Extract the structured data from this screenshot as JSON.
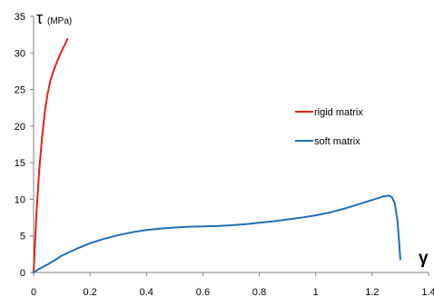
{
  "chart_data": {
    "type": "line",
    "ylabel": "τ",
    "ylabel_unit": "(MPa)",
    "xlabel": "γ",
    "xlim": [
      0,
      1.4
    ],
    "ylim": [
      0,
      35
    ],
    "xticks": [
      "0",
      "0.2",
      "0.4",
      "0.6",
      "0.8",
      "1",
      "1.2",
      "1.4"
    ],
    "yticks": [
      "0",
      "5",
      "10",
      "15",
      "20",
      "25",
      "30",
      "35"
    ],
    "grid": false,
    "legend_position": "right-middle",
    "series": [
      {
        "name": "rigid matrix",
        "color": "#e3211d",
        "points": [
          [
            0,
            0
          ],
          [
            0.002,
            1.5
          ],
          [
            0.005,
            4
          ],
          [
            0.01,
            8
          ],
          [
            0.015,
            11
          ],
          [
            0.02,
            14
          ],
          [
            0.03,
            18.5
          ],
          [
            0.04,
            22
          ],
          [
            0.05,
            24.5
          ],
          [
            0.06,
            26.3
          ],
          [
            0.07,
            27.5
          ],
          [
            0.08,
            28.5
          ],
          [
            0.09,
            29.5
          ],
          [
            0.1,
            30.3
          ],
          [
            0.11,
            31.1
          ],
          [
            0.12,
            31.9
          ]
        ]
      },
      {
        "name": "soft matrix",
        "color": "#1f6fb4",
        "points": [
          [
            0,
            0
          ],
          [
            0.02,
            0.5
          ],
          [
            0.05,
            1.1
          ],
          [
            0.08,
            1.8
          ],
          [
            0.1,
            2.3
          ],
          [
            0.15,
            3.2
          ],
          [
            0.2,
            4.0
          ],
          [
            0.25,
            4.6
          ],
          [
            0.3,
            5.1
          ],
          [
            0.35,
            5.5
          ],
          [
            0.4,
            5.8
          ],
          [
            0.45,
            6.0
          ],
          [
            0.5,
            6.15
          ],
          [
            0.55,
            6.25
          ],
          [
            0.6,
            6.3
          ],
          [
            0.65,
            6.35
          ],
          [
            0.7,
            6.45
          ],
          [
            0.75,
            6.6
          ],
          [
            0.8,
            6.8
          ],
          [
            0.85,
            7.0
          ],
          [
            0.9,
            7.25
          ],
          [
            0.95,
            7.5
          ],
          [
            1.0,
            7.8
          ],
          [
            1.05,
            8.2
          ],
          [
            1.1,
            8.7
          ],
          [
            1.15,
            9.3
          ],
          [
            1.2,
            9.9
          ],
          [
            1.24,
            10.4
          ],
          [
            1.26,
            10.5
          ],
          [
            1.27,
            10.3
          ],
          [
            1.28,
            9.5
          ],
          [
            1.29,
            7.0
          ],
          [
            1.295,
            4.5
          ],
          [
            1.3,
            1.8
          ]
        ]
      }
    ]
  }
}
